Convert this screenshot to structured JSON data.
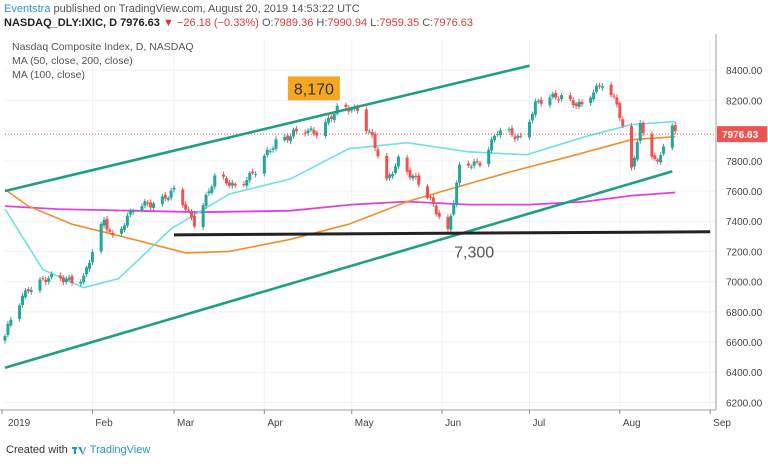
{
  "header": {
    "author": "Eventstra",
    "published_text": "published on TradingView.com, August 20, 2019 14:53:22 UTC",
    "symbol": "NASDAQ_DLY:IXIC, D",
    "last_price": "7976.63",
    "change": "−26.18 (−0.33%)",
    "ohlc": [
      {
        "key": "O:",
        "value": "7989.36"
      },
      {
        "key": "H:",
        "value": "7990.94"
      },
      {
        "key": "L:",
        "value": "7959.35"
      },
      {
        "key": "C:",
        "value": "7976.63"
      }
    ]
  },
  "legend": {
    "title": "Nasdaq Composite Index, D, NASDAQ",
    "ma1": "MA (50, close, 200, close)",
    "ma2": "MA (100, close)"
  },
  "footer": {
    "created_with": "Created with",
    "brand": "TradingView"
  },
  "colors": {
    "up": "#26a69a",
    "down": "#ef5350",
    "ma50": "#6fe0e8",
    "ma200": "#f28e2b",
    "ma100": "#e040e0",
    "channel": "#1e9e82",
    "support": "#222222",
    "price_tag": "#ef5350",
    "callout_bg": "#f5a623"
  },
  "chart_data": {
    "type": "candlestick",
    "title": "Nasdaq Composite Index, D, NASDAQ",
    "ylim": [
      6150,
      8600
    ],
    "y_ticks": [
      6200,
      6400,
      6600,
      6800,
      7000,
      7200,
      7400,
      7600,
      7800,
      8000,
      8200,
      8400
    ],
    "y_tick_labels": [
      "6200.00",
      "6400.00",
      "6600.00",
      "6800.00",
      "7000.00",
      "7200.00",
      "7400.00",
      "7600.00",
      "7800.00",
      "8000.00",
      "8200.00",
      "8400.00"
    ],
    "x_start": "2019-01-02",
    "x_end": "2019-09-03",
    "x_ticks": [
      {
        "date": "2019-01-01",
        "label": "2019"
      },
      {
        "date": "2019-02-01",
        "label": "Feb"
      },
      {
        "date": "2019-03-01",
        "label": "Mar"
      },
      {
        "date": "2019-04-01",
        "label": "Apr"
      },
      {
        "date": "2019-05-01",
        "label": "May"
      },
      {
        "date": "2019-06-01",
        "label": "Jun"
      },
      {
        "date": "2019-07-01",
        "label": "Jul"
      },
      {
        "date": "2019-08-01",
        "label": "Aug"
      },
      {
        "date": "2019-09-01",
        "label": "Sep"
      }
    ],
    "last_price": 7976.63,
    "last_price_label": "7976.63",
    "anchors": [
      [
        "2019-01-02",
        6640
      ],
      [
        "2019-01-04",
        6740
      ],
      [
        "2019-01-10",
        6960
      ],
      [
        "2019-01-15",
        7020
      ],
      [
        "2019-01-22",
        7010
      ],
      [
        "2019-01-29",
        7030
      ],
      [
        "2019-02-05",
        7400
      ],
      [
        "2019-02-08",
        7300
      ],
      [
        "2019-02-15",
        7470
      ],
      [
        "2019-02-22",
        7530
      ],
      [
        "2019-03-01",
        7590
      ],
      [
        "2019-03-08",
        7400
      ],
      [
        "2019-03-15",
        7680
      ],
      [
        "2019-03-22",
        7640
      ],
      [
        "2019-03-29",
        7720
      ],
      [
        "2019-04-05",
        7940
      ],
      [
        "2019-04-12",
        7980
      ],
      [
        "2019-04-19",
        8000
      ],
      [
        "2019-04-26",
        8130
      ],
      [
        "2019-05-03",
        8150
      ],
      [
        "2019-05-08",
        7950
      ],
      [
        "2019-05-13",
        7650
      ],
      [
        "2019-05-17",
        7820
      ],
      [
        "2019-05-24",
        7640
      ],
      [
        "2019-05-31",
        7450
      ],
      [
        "2019-06-03",
        7340
      ],
      [
        "2019-06-07",
        7740
      ],
      [
        "2019-06-14",
        7800
      ],
      [
        "2019-06-20",
        7990
      ],
      [
        "2019-06-28",
        7960
      ],
      [
        "2019-07-03",
        8170
      ],
      [
        "2019-07-12",
        8240
      ],
      [
        "2019-07-19",
        8150
      ],
      [
        "2019-07-26",
        8330
      ],
      [
        "2019-07-31",
        8180
      ],
      [
        "2019-08-02",
        8000
      ],
      [
        "2019-08-05",
        7730
      ],
      [
        "2019-08-08",
        8040
      ],
      [
        "2019-08-12",
        7860
      ],
      [
        "2019-08-14",
        7770
      ],
      [
        "2019-08-16",
        7900
      ],
      [
        "2019-08-19",
        8010
      ],
      [
        "2019-08-20",
        7976.63
      ]
    ],
    "ma50": [
      [
        "2019-01-02",
        7480
      ],
      [
        "2019-01-15",
        7080
      ],
      [
        "2019-01-29",
        6960
      ],
      [
        "2019-02-10",
        7020
      ],
      [
        "2019-02-28",
        7350
      ],
      [
        "2019-03-20",
        7580
      ],
      [
        "2019-04-10",
        7680
      ],
      [
        "2019-04-30",
        7880
      ],
      [
        "2019-05-20",
        7920
      ],
      [
        "2019-06-10",
        7860
      ],
      [
        "2019-06-30",
        7840
      ],
      [
        "2019-07-20",
        7960
      ],
      [
        "2019-08-05",
        8040
      ],
      [
        "2019-08-20",
        8060
      ]
    ],
    "ma200": [
      [
        "2019-01-02",
        7610
      ],
      [
        "2019-01-10",
        7500
      ],
      [
        "2019-01-25",
        7380
      ],
      [
        "2019-02-15",
        7280
      ],
      [
        "2019-03-05",
        7190
      ],
      [
        "2019-03-20",
        7200
      ],
      [
        "2019-04-10",
        7280
      ],
      [
        "2019-04-30",
        7380
      ],
      [
        "2019-05-20",
        7530
      ],
      [
        "2019-06-05",
        7620
      ],
      [
        "2019-06-25",
        7730
      ],
      [
        "2019-07-15",
        7830
      ],
      [
        "2019-08-05",
        7940
      ],
      [
        "2019-08-20",
        7960
      ]
    ],
    "ma100": [
      [
        "2019-01-02",
        7500
      ],
      [
        "2019-01-20",
        7480
      ],
      [
        "2019-02-15",
        7470
      ],
      [
        "2019-03-10",
        7460
      ],
      [
        "2019-04-10",
        7470
      ],
      [
        "2019-05-01",
        7510
      ],
      [
        "2019-05-20",
        7530
      ],
      [
        "2019-06-10",
        7510
      ],
      [
        "2019-07-01",
        7510
      ],
      [
        "2019-07-20",
        7530
      ],
      [
        "2019-08-05",
        7570
      ],
      [
        "2019-08-20",
        7590
      ]
    ],
    "trendlines": [
      {
        "name": "upper-channel",
        "from": [
          "2019-01-02",
          7600
        ],
        "to": [
          "2019-07-01",
          8430
        ]
      },
      {
        "name": "lower-channel",
        "from": [
          "2019-01-02",
          6430
        ],
        "to": [
          "2019-08-19",
          7730
        ]
      },
      {
        "name": "support-7300",
        "from": [
          "2019-03-01",
          7310
        ],
        "to": [
          "2019-09-01",
          7330
        ]
      }
    ],
    "callouts": [
      {
        "label": "8,170",
        "date": "2019-04-18",
        "value": 8280,
        "boxed": true
      },
      {
        "label": "7,300",
        "date": "2019-06-12",
        "value": 7200,
        "boxed": false
      }
    ]
  }
}
